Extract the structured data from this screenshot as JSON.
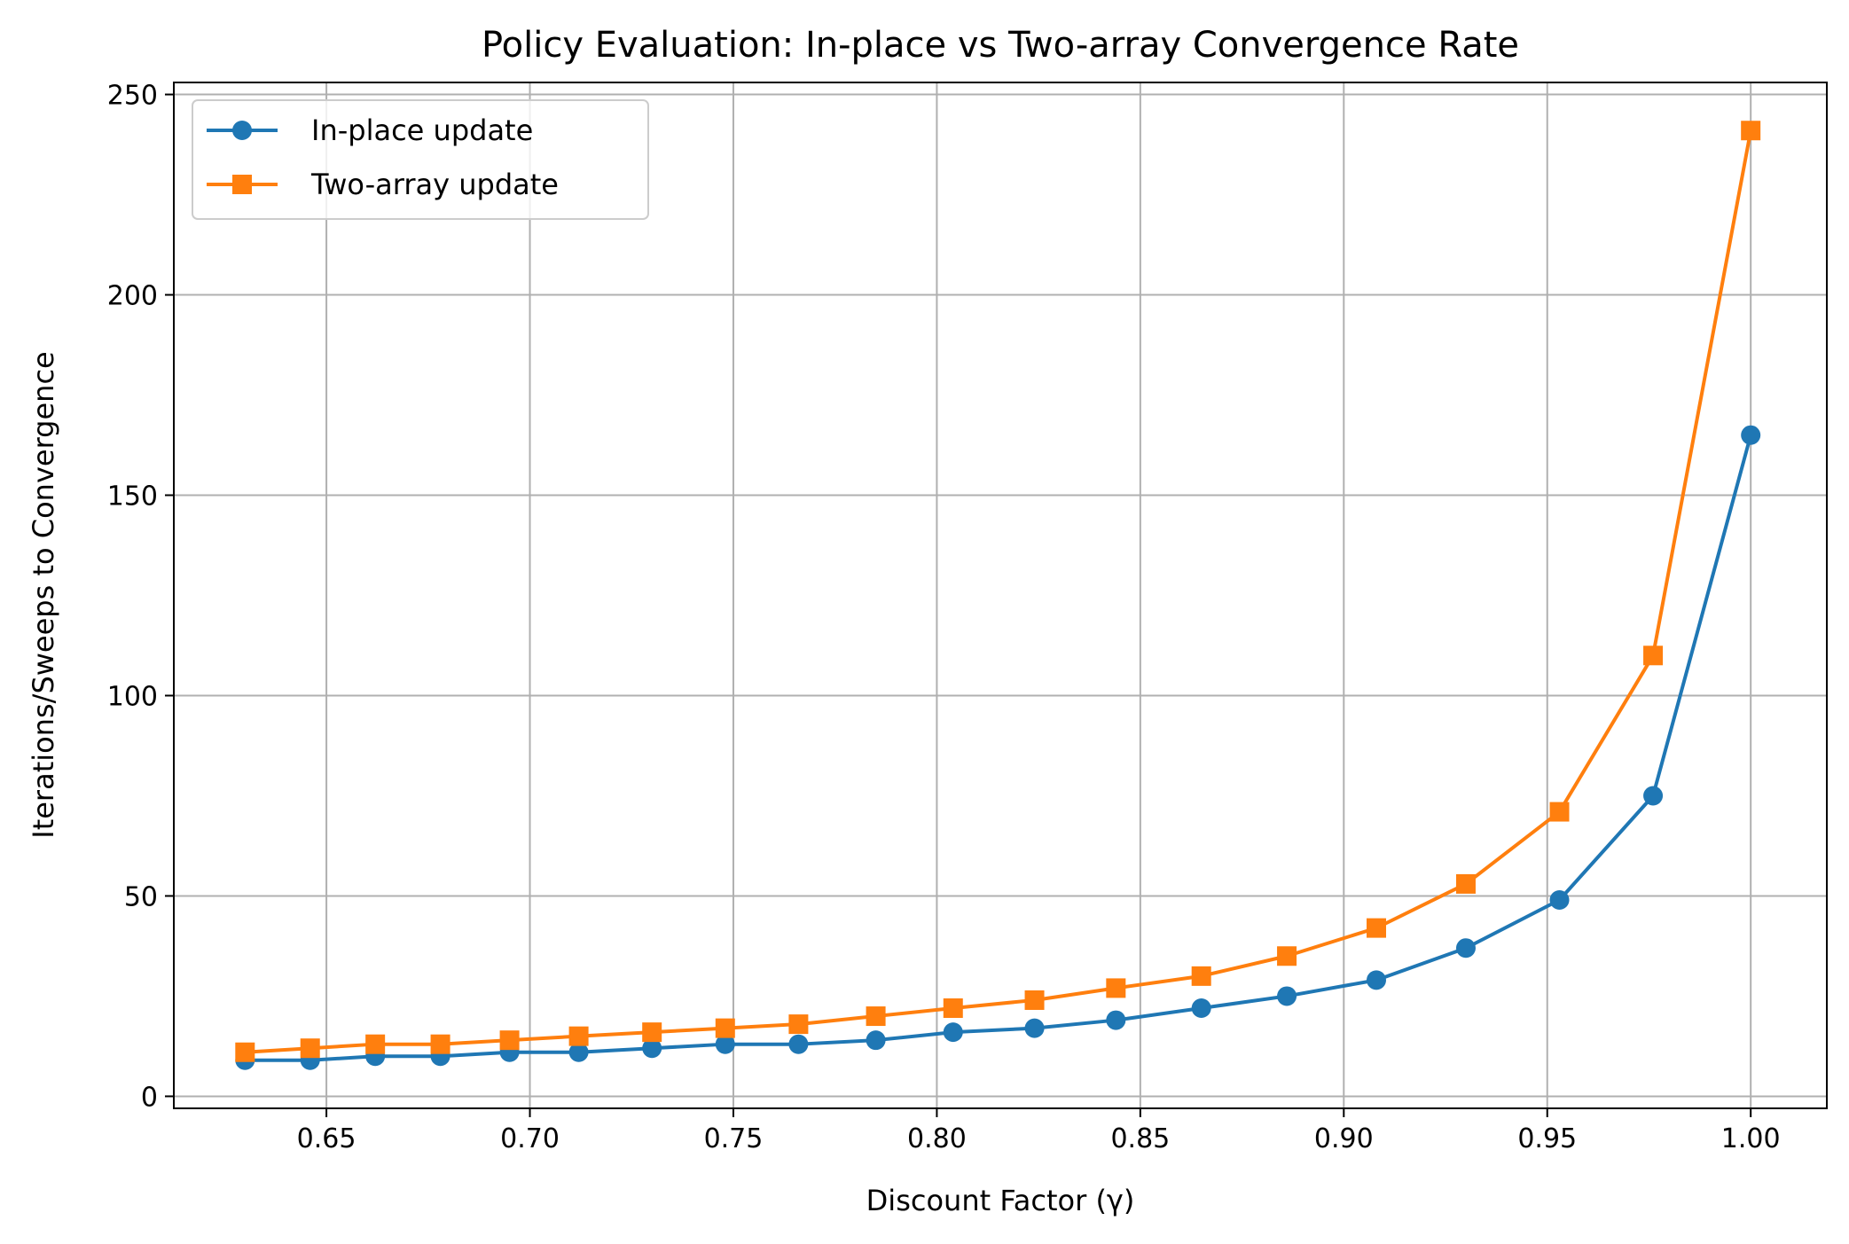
{
  "chart_data": {
    "type": "line",
    "title": "Policy Evaluation: In-place vs Two-array Convergence Rate",
    "xlabel": "Discount Factor (γ)",
    "ylabel": "Iterations/Sweeps to Convergence",
    "xlim": [
      0.6125,
      1.0187
    ],
    "ylim": [
      -3,
      253
    ],
    "xticks": [
      0.65,
      0.7,
      0.75,
      0.8,
      0.85,
      0.9,
      0.95,
      1.0
    ],
    "xtick_labels": [
      "0.65",
      "0.70",
      "0.75",
      "0.80",
      "0.85",
      "0.90",
      "0.95",
      "1.00"
    ],
    "yticks": [
      0,
      50,
      100,
      150,
      200,
      250
    ],
    "ytick_labels": [
      "0",
      "50",
      "100",
      "150",
      "200",
      "250"
    ],
    "grid": true,
    "legend_position": "top-left",
    "x": [
      0.63,
      0.646,
      0.662,
      0.678,
      0.695,
      0.712,
      0.73,
      0.748,
      0.766,
      0.785,
      0.804,
      0.824,
      0.844,
      0.865,
      0.886,
      0.908,
      0.93,
      0.953,
      0.976,
      1.0
    ],
    "series": [
      {
        "name": "In-place update",
        "marker": "circle",
        "color": "#1f77b4",
        "values": [
          9,
          9,
          10,
          10,
          11,
          11,
          12,
          13,
          13,
          14,
          16,
          17,
          19,
          22,
          25,
          29,
          37,
          49,
          75,
          165
        ]
      },
      {
        "name": "Two-array update",
        "marker": "square",
        "color": "#ff7f0e",
        "values": [
          11,
          12,
          13,
          13,
          14,
          15,
          16,
          17,
          18,
          20,
          22,
          24,
          27,
          30,
          35,
          42,
          53,
          71,
          110,
          241
        ]
      }
    ]
  }
}
